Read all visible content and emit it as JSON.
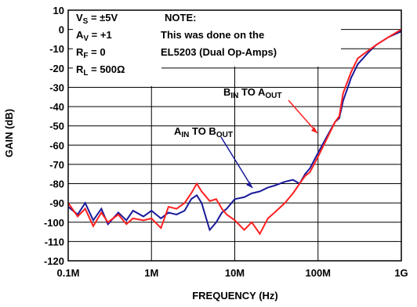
{
  "chart_data": {
    "type": "line",
    "xlabel": "FREQUENCY (Hz)",
    "ylabel": "GAIN (dB)",
    "log_x": true,
    "grid": true,
    "xlim": [
      100000,
      1000000000
    ],
    "xticks": [
      {
        "value": 100000,
        "label": "0.1M"
      },
      {
        "value": 1000000,
        "label": "1M"
      },
      {
        "value": 10000000,
        "label": "10M"
      },
      {
        "value": 100000000,
        "label": "100M"
      },
      {
        "value": 1000000000,
        "label": "1G"
      }
    ],
    "ylim": [
      -120,
      10
    ],
    "yticks": [
      -120,
      -110,
      -100,
      -90,
      -80,
      -70,
      -60,
      -50,
      -40,
      -30,
      -20,
      -10,
      0,
      10
    ],
    "conditions": [
      [
        {
          "text": "V"
        },
        {
          "text": "S",
          "sub": true
        },
        {
          "text": " = ±5V"
        }
      ],
      [
        {
          "text": "A"
        },
        {
          "text": "V",
          "sub": true
        },
        {
          "text": " = +1"
        }
      ],
      [
        {
          "text": "R"
        },
        {
          "text": "F",
          "sub": true
        },
        {
          "text": " = 0"
        }
      ],
      [
        {
          "text": "R"
        },
        {
          "text": "L",
          "sub": true
        },
        {
          "text": " = 500Ω"
        }
      ]
    ],
    "note": [
      "NOTE:",
      "This was done on the",
      "EL5203 (Dual Op-Amps)"
    ],
    "x": [
      100000,
      130000,
      160000,
      200000,
      250000,
      300000,
      400000,
      500000,
      600000,
      800000,
      1000000,
      1300000,
      1600000,
      2000000,
      2500000,
      3000000,
      3500000,
      4000000,
      5000000,
      6000000,
      7000000,
      8000000,
      10000000,
      13000000,
      16000000,
      20000000,
      25000000,
      30000000,
      40000000,
      50000000,
      60000000,
      70000000,
      80000000,
      100000000,
      130000000,
      160000000,
      180000000,
      200000000,
      250000000,
      300000000,
      400000000,
      500000000,
      700000000,
      1000000000
    ],
    "series": [
      {
        "name": [
          {
            "text": "A"
          },
          {
            "text": "IN",
            "sub": true
          },
          {
            "text": " TO B"
          },
          {
            "text": "OUT",
            "sub": true
          }
        ],
        "color": "#1a1a9a",
        "values": [
          -92,
          -96,
          -90,
          -99,
          -93,
          -101,
          -95,
          -99,
          -94,
          -97,
          -94,
          -98,
          -95,
          -96,
          -94,
          -88,
          -86,
          -90,
          -104,
          -100,
          -95,
          -93,
          -88,
          -87,
          -85,
          -84,
          -82,
          -81,
          -79,
          -78,
          -80,
          -75,
          -72,
          -64,
          -55,
          -48,
          -46,
          -37,
          -25,
          -18,
          -12,
          -8,
          -4,
          -1
        ]
      },
      {
        "name": [
          {
            "text": "B"
          },
          {
            "text": "IN",
            "sub": true
          },
          {
            "text": " TO A"
          },
          {
            "text": "OUT",
            "sub": true
          }
        ],
        "color": "#ff2020",
        "values": [
          -90,
          -97,
          -93,
          -102,
          -95,
          -100,
          -96,
          -101,
          -98,
          -99,
          -98,
          -103,
          -92,
          -93,
          -90,
          -85,
          -80,
          -84,
          -89,
          -88,
          -93,
          -96,
          -99,
          -104,
          -100,
          -106,
          -98,
          -95,
          -90,
          -85,
          -80,
          -76,
          -74,
          -66,
          -56,
          -48,
          -45,
          -33,
          -22,
          -15,
          -11,
          -8,
          -4,
          0
        ]
      }
    ]
  }
}
